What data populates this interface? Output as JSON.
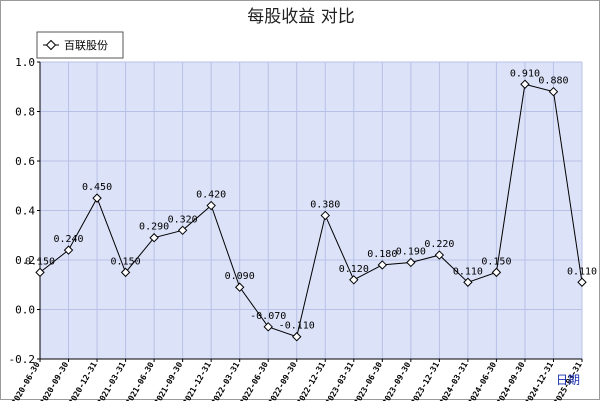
{
  "chart_data": {
    "type": "line",
    "title": "每股收益  对比",
    "xlabel": "日期",
    "ylabel": "",
    "ylim": [
      -0.2,
      1.0
    ],
    "yticks": [
      -0.2,
      0.0,
      0.2,
      0.4,
      0.6,
      0.8,
      1.0
    ],
    "grid": true,
    "legend_position": "top-left",
    "x": [
      "2020-06-30",
      "2020-09-30",
      "2020-12-31",
      "2021-03-31",
      "2021-06-30",
      "2021-09-30",
      "2021-12-31",
      "2022-03-31",
      "2022-06-30",
      "2022-09-30",
      "2022-12-31",
      "2023-03-31",
      "2023-06-30",
      "2023-09-30",
      "2023-12-31",
      "2024-03-31",
      "2024-06-30",
      "2024-09-30",
      "2024-12-31",
      "2025-03-31"
    ],
    "series": [
      {
        "name": "百联股份",
        "values": [
          0.15,
          0.24,
          0.45,
          0.15,
          0.29,
          0.32,
          0.42,
          0.09,
          -0.07,
          -0.11,
          0.38,
          0.12,
          0.18,
          0.19,
          0.22,
          0.11,
          0.15,
          0.91,
          0.88,
          0.11
        ],
        "labels": [
          "0.150",
          "0.240",
          "0.450",
          "0.150",
          "0.290",
          "0.320",
          "0.420",
          "0.090",
          "-0.070",
          "-0.110",
          "0.380",
          "0.120",
          "0.180",
          "0.190",
          "0.220",
          "0.110",
          "0.150",
          "0.910",
          "0.880",
          "0.110"
        ]
      }
    ]
  },
  "colors": {
    "plot_background": "#dce2f8",
    "grid": "#b7c1e6",
    "line": "#000000",
    "marker_fill": "#ffffff",
    "axis_unit": "#1a2fb0"
  }
}
